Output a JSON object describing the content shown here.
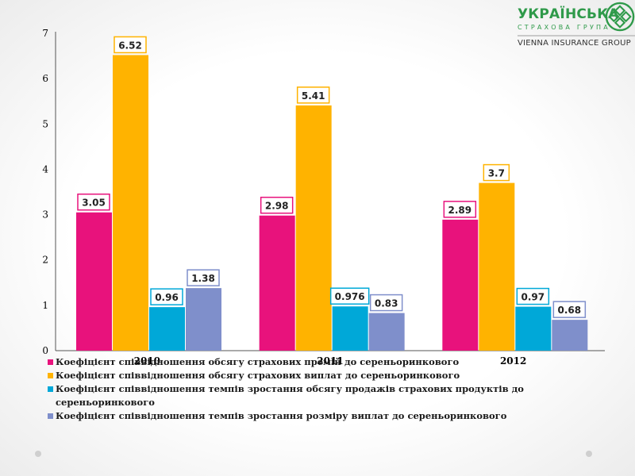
{
  "logo": {
    "brand": "УКРАЇНСЬКА",
    "subtitle": "СТРАХОВА ГРУПА",
    "group": "VIENNA INSURANCE GROUP"
  },
  "colors": {
    "series1": "#e8127c",
    "series2": "#ffb300",
    "series3": "#00a8d8",
    "series4": "#7f8fcb",
    "brand_green": "#2f9a4a"
  },
  "chart_data": {
    "type": "bar",
    "categories": [
      "2010",
      "2011",
      "2012"
    ],
    "ylim": [
      0,
      7
    ],
    "yticks": [
      0,
      1,
      2,
      3,
      4,
      5,
      6,
      7
    ],
    "grid": false,
    "legend_position": "bottom",
    "title": "",
    "xlabel": "",
    "ylabel": "",
    "series": [
      {
        "name": "Коефіцієнт співвідношення обсягу страхових премій до сереньоринкового",
        "color": "#e8127c",
        "values": [
          3.05,
          2.98,
          2.89
        ],
        "labels": [
          "3.05",
          "2.98",
          "2.89"
        ]
      },
      {
        "name": "Коефіцієнт співвідношення обсягу страхових виплат до сереньоринкового",
        "color": "#ffb300",
        "values": [
          6.52,
          5.41,
          3.7
        ],
        "labels": [
          "6.52",
          "5.41",
          "3.7"
        ]
      },
      {
        "name": "Коефіцієнт співвідношення темпів зростання обсягу продажів страхових продуктів до сереньоринкового",
        "color": "#00a8d8",
        "values": [
          0.96,
          0.976,
          0.97
        ],
        "labels": [
          "0.96",
          "0.976",
          "0.97"
        ]
      },
      {
        "name": "Коефіцієнт співвідношення темпів зростання розміру виплат  до сереньоринкового",
        "color": "#7f8fcb",
        "values": [
          1.38,
          0.83,
          0.68
        ],
        "labels": [
          "1.38",
          "0.83",
          "0.68"
        ]
      }
    ]
  }
}
